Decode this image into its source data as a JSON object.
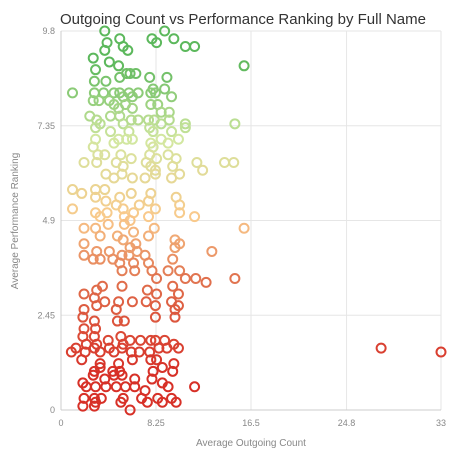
{
  "chart_data": {
    "type": "scatter",
    "title": "Outgoing Count vs Performance Ranking by Full Name",
    "xlabel": "Average Outgoing Count",
    "ylabel": "Average Performance Ranking",
    "xlim": [
      0,
      33
    ],
    "ylim": [
      0,
      9.8
    ],
    "x_ticks": [
      "0",
      "8.25",
      "16.5",
      "24.8",
      "33"
    ],
    "y_ticks": [
      "0",
      "2.45",
      "4.9",
      "7.35",
      "9.8"
    ],
    "grid": true,
    "legend": "none",
    "color_scale": {
      "type": "diverging-by-y",
      "stops": [
        {
          "y": 1.0,
          "color": "#d73027"
        },
        {
          "y": 3.3,
          "color": "#e06f4c"
        },
        {
          "y": 5.0,
          "color": "#f9c98b"
        },
        {
          "y": 7.0,
          "color": "#d2e7a0"
        },
        {
          "y": 9.0,
          "color": "#5cb85c"
        }
      ]
    },
    "points": [
      [
        3.8,
        9.8
      ],
      [
        4.0,
        9.5
      ],
      [
        3.8,
        9.3
      ],
      [
        5.1,
        9.6
      ],
      [
        5.4,
        9.4
      ],
      [
        5.8,
        9.3
      ],
      [
        7.9,
        9.6
      ],
      [
        8.3,
        9.5
      ],
      [
        9.0,
        9.8
      ],
      [
        9.8,
        9.6
      ],
      [
        10.8,
        9.4
      ],
      [
        11.6,
        9.4
      ],
      [
        2.8,
        9.1
      ],
      [
        3.0,
        8.8
      ],
      [
        4.2,
        9.0
      ],
      [
        5.0,
        8.9
      ],
      [
        5.7,
        8.7
      ],
      [
        6.0,
        8.7
      ],
      [
        2.9,
        8.5
      ],
      [
        3.9,
        8.5
      ],
      [
        5.1,
        8.6
      ],
      [
        6.5,
        8.7
      ],
      [
        7.7,
        8.6
      ],
      [
        8.0,
        8.3
      ],
      [
        9.2,
        8.6
      ],
      [
        15.9,
        8.9
      ],
      [
        1.0,
        8.2
      ],
      [
        2.9,
        8.2
      ],
      [
        3.7,
        8.2
      ],
      [
        4.6,
        8.2
      ],
      [
        5.1,
        8.2
      ],
      [
        5.4,
        8.1
      ],
      [
        5.9,
        8.2
      ],
      [
        6.2,
        8.1
      ],
      [
        6.7,
        8.2
      ],
      [
        7.8,
        8.2
      ],
      [
        8.2,
        8.2
      ],
      [
        9.0,
        8.3
      ],
      [
        9.6,
        8.1
      ],
      [
        2.8,
        8.0
      ],
      [
        3.3,
        8.0
      ],
      [
        4.2,
        8.0
      ],
      [
        4.6,
        7.9
      ],
      [
        5.0,
        7.8
      ],
      [
        5.6,
        7.9
      ],
      [
        6.2,
        7.8
      ],
      [
        7.8,
        7.9
      ],
      [
        8.4,
        7.9
      ],
      [
        8.7,
        7.7
      ],
      [
        9.4,
        7.7
      ],
      [
        2.5,
        7.6
      ],
      [
        3.1,
        7.5
      ],
      [
        3.4,
        7.4
      ],
      [
        4.3,
        7.6
      ],
      [
        5.1,
        7.6
      ],
      [
        5.4,
        7.4
      ],
      [
        6.1,
        7.5
      ],
      [
        6.7,
        7.5
      ],
      [
        7.6,
        7.5
      ],
      [
        8.1,
        7.5
      ],
      [
        8.7,
        7.4
      ],
      [
        9.4,
        7.5
      ],
      [
        10.8,
        7.4
      ],
      [
        15.1,
        7.4
      ],
      [
        3.0,
        7.3
      ],
      [
        4.3,
        7.2
      ],
      [
        5.9,
        7.2
      ],
      [
        7.7,
        7.3
      ],
      [
        8.0,
        7.2
      ],
      [
        9.6,
        7.2
      ],
      [
        10.8,
        7.3
      ],
      [
        3.0,
        7.0
      ],
      [
        4.6,
        6.9
      ],
      [
        5.0,
        7.0
      ],
      [
        5.7,
        7.0
      ],
      [
        6.2,
        7.0
      ],
      [
        7.8,
        6.9
      ],
      [
        8.0,
        6.8
      ],
      [
        8.7,
        7.0
      ],
      [
        9.3,
        6.9
      ],
      [
        10.2,
        7.0
      ],
      [
        2.8,
        6.8
      ],
      [
        3.2,
        6.6
      ],
      [
        3.8,
        6.6
      ],
      [
        5.2,
        6.6
      ],
      [
        6.1,
        6.5
      ],
      [
        7.7,
        6.6
      ],
      [
        8.3,
        6.5
      ],
      [
        9.3,
        6.6
      ],
      [
        10.0,
        6.5
      ],
      [
        14.2,
        6.4
      ],
      [
        15.0,
        6.4
      ],
      [
        2.0,
        6.4
      ],
      [
        3.1,
        6.4
      ],
      [
        4.8,
        6.4
      ],
      [
        5.4,
        6.3
      ],
      [
        7.4,
        6.4
      ],
      [
        7.8,
        6.3
      ],
      [
        8.2,
        6.2
      ],
      [
        9.7,
        6.3
      ],
      [
        11.8,
        6.4
      ],
      [
        3.9,
        6.1
      ],
      [
        4.6,
        6.0
      ],
      [
        5.3,
        6.1
      ],
      [
        6.2,
        6.0
      ],
      [
        7.3,
        6.0
      ],
      [
        8.2,
        6.1
      ],
      [
        9.6,
        6.0
      ],
      [
        10.3,
        6.1
      ],
      [
        12.3,
        6.2
      ],
      [
        1.0,
        5.7
      ],
      [
        1.8,
        5.6
      ],
      [
        3.0,
        5.7
      ],
      [
        3.8,
        5.7
      ],
      [
        5.1,
        5.5
      ],
      [
        6.1,
        5.6
      ],
      [
        7.8,
        5.6
      ],
      [
        10.0,
        5.5
      ],
      [
        3.0,
        5.5
      ],
      [
        3.9,
        5.4
      ],
      [
        4.8,
        5.3
      ],
      [
        5.4,
        5.2
      ],
      [
        6.3,
        5.1
      ],
      [
        6.8,
        5.3
      ],
      [
        7.6,
        5.4
      ],
      [
        10.3,
        5.3
      ],
      [
        1.0,
        5.2
      ],
      [
        3.0,
        5.1
      ],
      [
        3.4,
        5.0
      ],
      [
        4.0,
        5.1
      ],
      [
        5.5,
        5.0
      ],
      [
        6.0,
        4.9
      ],
      [
        7.6,
        5.0
      ],
      [
        8.2,
        5.2
      ],
      [
        10.3,
        5.1
      ],
      [
        11.6,
        5.0
      ],
      [
        3.0,
        4.7
      ],
      [
        4.1,
        4.8
      ],
      [
        5.5,
        4.8
      ],
      [
        6.3,
        4.6
      ],
      [
        8.1,
        4.7
      ],
      [
        2.0,
        4.7
      ],
      [
        3.4,
        4.5
      ],
      [
        4.9,
        4.5
      ],
      [
        5.4,
        4.4
      ],
      [
        6.5,
        4.3
      ],
      [
        7.6,
        4.5
      ],
      [
        9.9,
        4.4
      ],
      [
        10.3,
        4.3
      ],
      [
        15.9,
        4.7
      ],
      [
        2.0,
        4.3
      ],
      [
        3.1,
        4.1
      ],
      [
        4.2,
        4.1
      ],
      [
        5.3,
        4.0
      ],
      [
        5.9,
        4.0
      ],
      [
        6.0,
        4.2
      ],
      [
        6.6,
        4.1
      ],
      [
        7.3,
        4.0
      ],
      [
        9.9,
        4.2
      ],
      [
        13.1,
        4.1
      ],
      [
        2.0,
        4.0
      ],
      [
        2.8,
        3.9
      ],
      [
        3.4,
        3.9
      ],
      [
        4.5,
        3.9
      ],
      [
        5.1,
        3.8
      ],
      [
        6.3,
        3.8
      ],
      [
        7.6,
        3.8
      ],
      [
        9.7,
        3.9
      ],
      [
        10.3,
        3.6
      ],
      [
        5.3,
        3.6
      ],
      [
        6.4,
        3.6
      ],
      [
        7.9,
        3.6
      ],
      [
        9.3,
        3.6
      ],
      [
        8.3,
        3.4
      ],
      [
        9.7,
        3.2
      ],
      [
        10.8,
        3.4
      ],
      [
        11.7,
        3.4
      ],
      [
        12.6,
        3.3
      ],
      [
        15.1,
        3.4
      ],
      [
        3.1,
        3.1
      ],
      [
        3.6,
        3.2
      ],
      [
        5.3,
        3.2
      ],
      [
        7.5,
        3.1
      ],
      [
        8.3,
        3.0
      ],
      [
        10.2,
        3.0
      ],
      [
        2.0,
        3.0
      ],
      [
        2.9,
        2.9
      ],
      [
        3.8,
        2.8
      ],
      [
        5.0,
        2.8
      ],
      [
        6.2,
        2.8
      ],
      [
        7.4,
        2.8
      ],
      [
        9.6,
        2.8
      ],
      [
        10.2,
        2.7
      ],
      [
        2.0,
        2.6
      ],
      [
        3.1,
        2.7
      ],
      [
        4.8,
        2.6
      ],
      [
        8.2,
        2.7
      ],
      [
        9.9,
        2.6
      ],
      [
        1.9,
        2.4
      ],
      [
        2.9,
        2.3
      ],
      [
        4.9,
        2.3
      ],
      [
        8.2,
        2.4
      ],
      [
        9.9,
        2.4
      ],
      [
        3.0,
        2.1
      ],
      [
        5.5,
        2.3
      ],
      [
        2.0,
        2.1
      ],
      [
        2.9,
        1.9
      ],
      [
        1.9,
        1.9
      ],
      [
        2.2,
        1.7
      ],
      [
        3.1,
        1.7
      ],
      [
        4.1,
        1.8
      ],
      [
        5.2,
        1.9
      ],
      [
        5.4,
        1.7
      ],
      [
        6.0,
        1.8
      ],
      [
        6.9,
        1.8
      ],
      [
        7.8,
        1.8
      ],
      [
        8.2,
        1.8
      ],
      [
        9.0,
        1.8
      ],
      [
        9.8,
        1.7
      ],
      [
        0.9,
        1.5
      ],
      [
        1.3,
        1.6
      ],
      [
        2.1,
        1.5
      ],
      [
        2.9,
        1.6
      ],
      [
        3.4,
        1.5
      ],
      [
        4.2,
        1.6
      ],
      [
        4.6,
        1.5
      ],
      [
        5.3,
        1.6
      ],
      [
        6.1,
        1.5
      ],
      [
        6.8,
        1.5
      ],
      [
        7.7,
        1.5
      ],
      [
        8.5,
        1.6
      ],
      [
        9.2,
        1.6
      ],
      [
        10.2,
        1.6
      ],
      [
        27.8,
        1.6
      ],
      [
        33.0,
        1.5
      ],
      [
        1.8,
        1.3
      ],
      [
        3.4,
        1.2
      ],
      [
        5.0,
        1.2
      ],
      [
        6.2,
        1.3
      ],
      [
        7.8,
        1.3
      ],
      [
        8.3,
        1.3
      ],
      [
        9.8,
        1.2
      ],
      [
        2.9,
        1.0
      ],
      [
        3.4,
        1.1
      ],
      [
        4.5,
        1.0
      ],
      [
        5.1,
        1.0
      ],
      [
        8.0,
        1.0
      ],
      [
        8.8,
        1.1
      ],
      [
        9.7,
        1.0
      ],
      [
        2.8,
        0.9
      ],
      [
        3.8,
        0.8
      ],
      [
        4.6,
        0.9
      ],
      [
        5.3,
        0.9
      ],
      [
        6.4,
        0.8
      ],
      [
        7.9,
        0.8
      ],
      [
        8.8,
        0.7
      ],
      [
        1.9,
        0.7
      ],
      [
        2.2,
        0.6
      ],
      [
        3.0,
        0.6
      ],
      [
        3.9,
        0.6
      ],
      [
        4.8,
        0.6
      ],
      [
        5.6,
        0.6
      ],
      [
        6.4,
        0.6
      ],
      [
        7.3,
        0.5
      ],
      [
        9.3,
        0.6
      ],
      [
        11.6,
        0.6
      ],
      [
        2.0,
        0.3
      ],
      [
        2.9,
        0.3
      ],
      [
        3.5,
        0.3
      ],
      [
        5.4,
        0.3
      ],
      [
        7.0,
        0.3
      ],
      [
        8.4,
        0.3
      ],
      [
        9.6,
        0.3
      ],
      [
        1.9,
        0.1
      ],
      [
        2.9,
        0.1
      ],
      [
        3.0,
        0.2
      ],
      [
        5.2,
        0.2
      ],
      [
        7.5,
        0.2
      ],
      [
        8.8,
        0.2
      ],
      [
        10.0,
        0.2
      ],
      [
        6.0,
        0.0
      ]
    ]
  }
}
